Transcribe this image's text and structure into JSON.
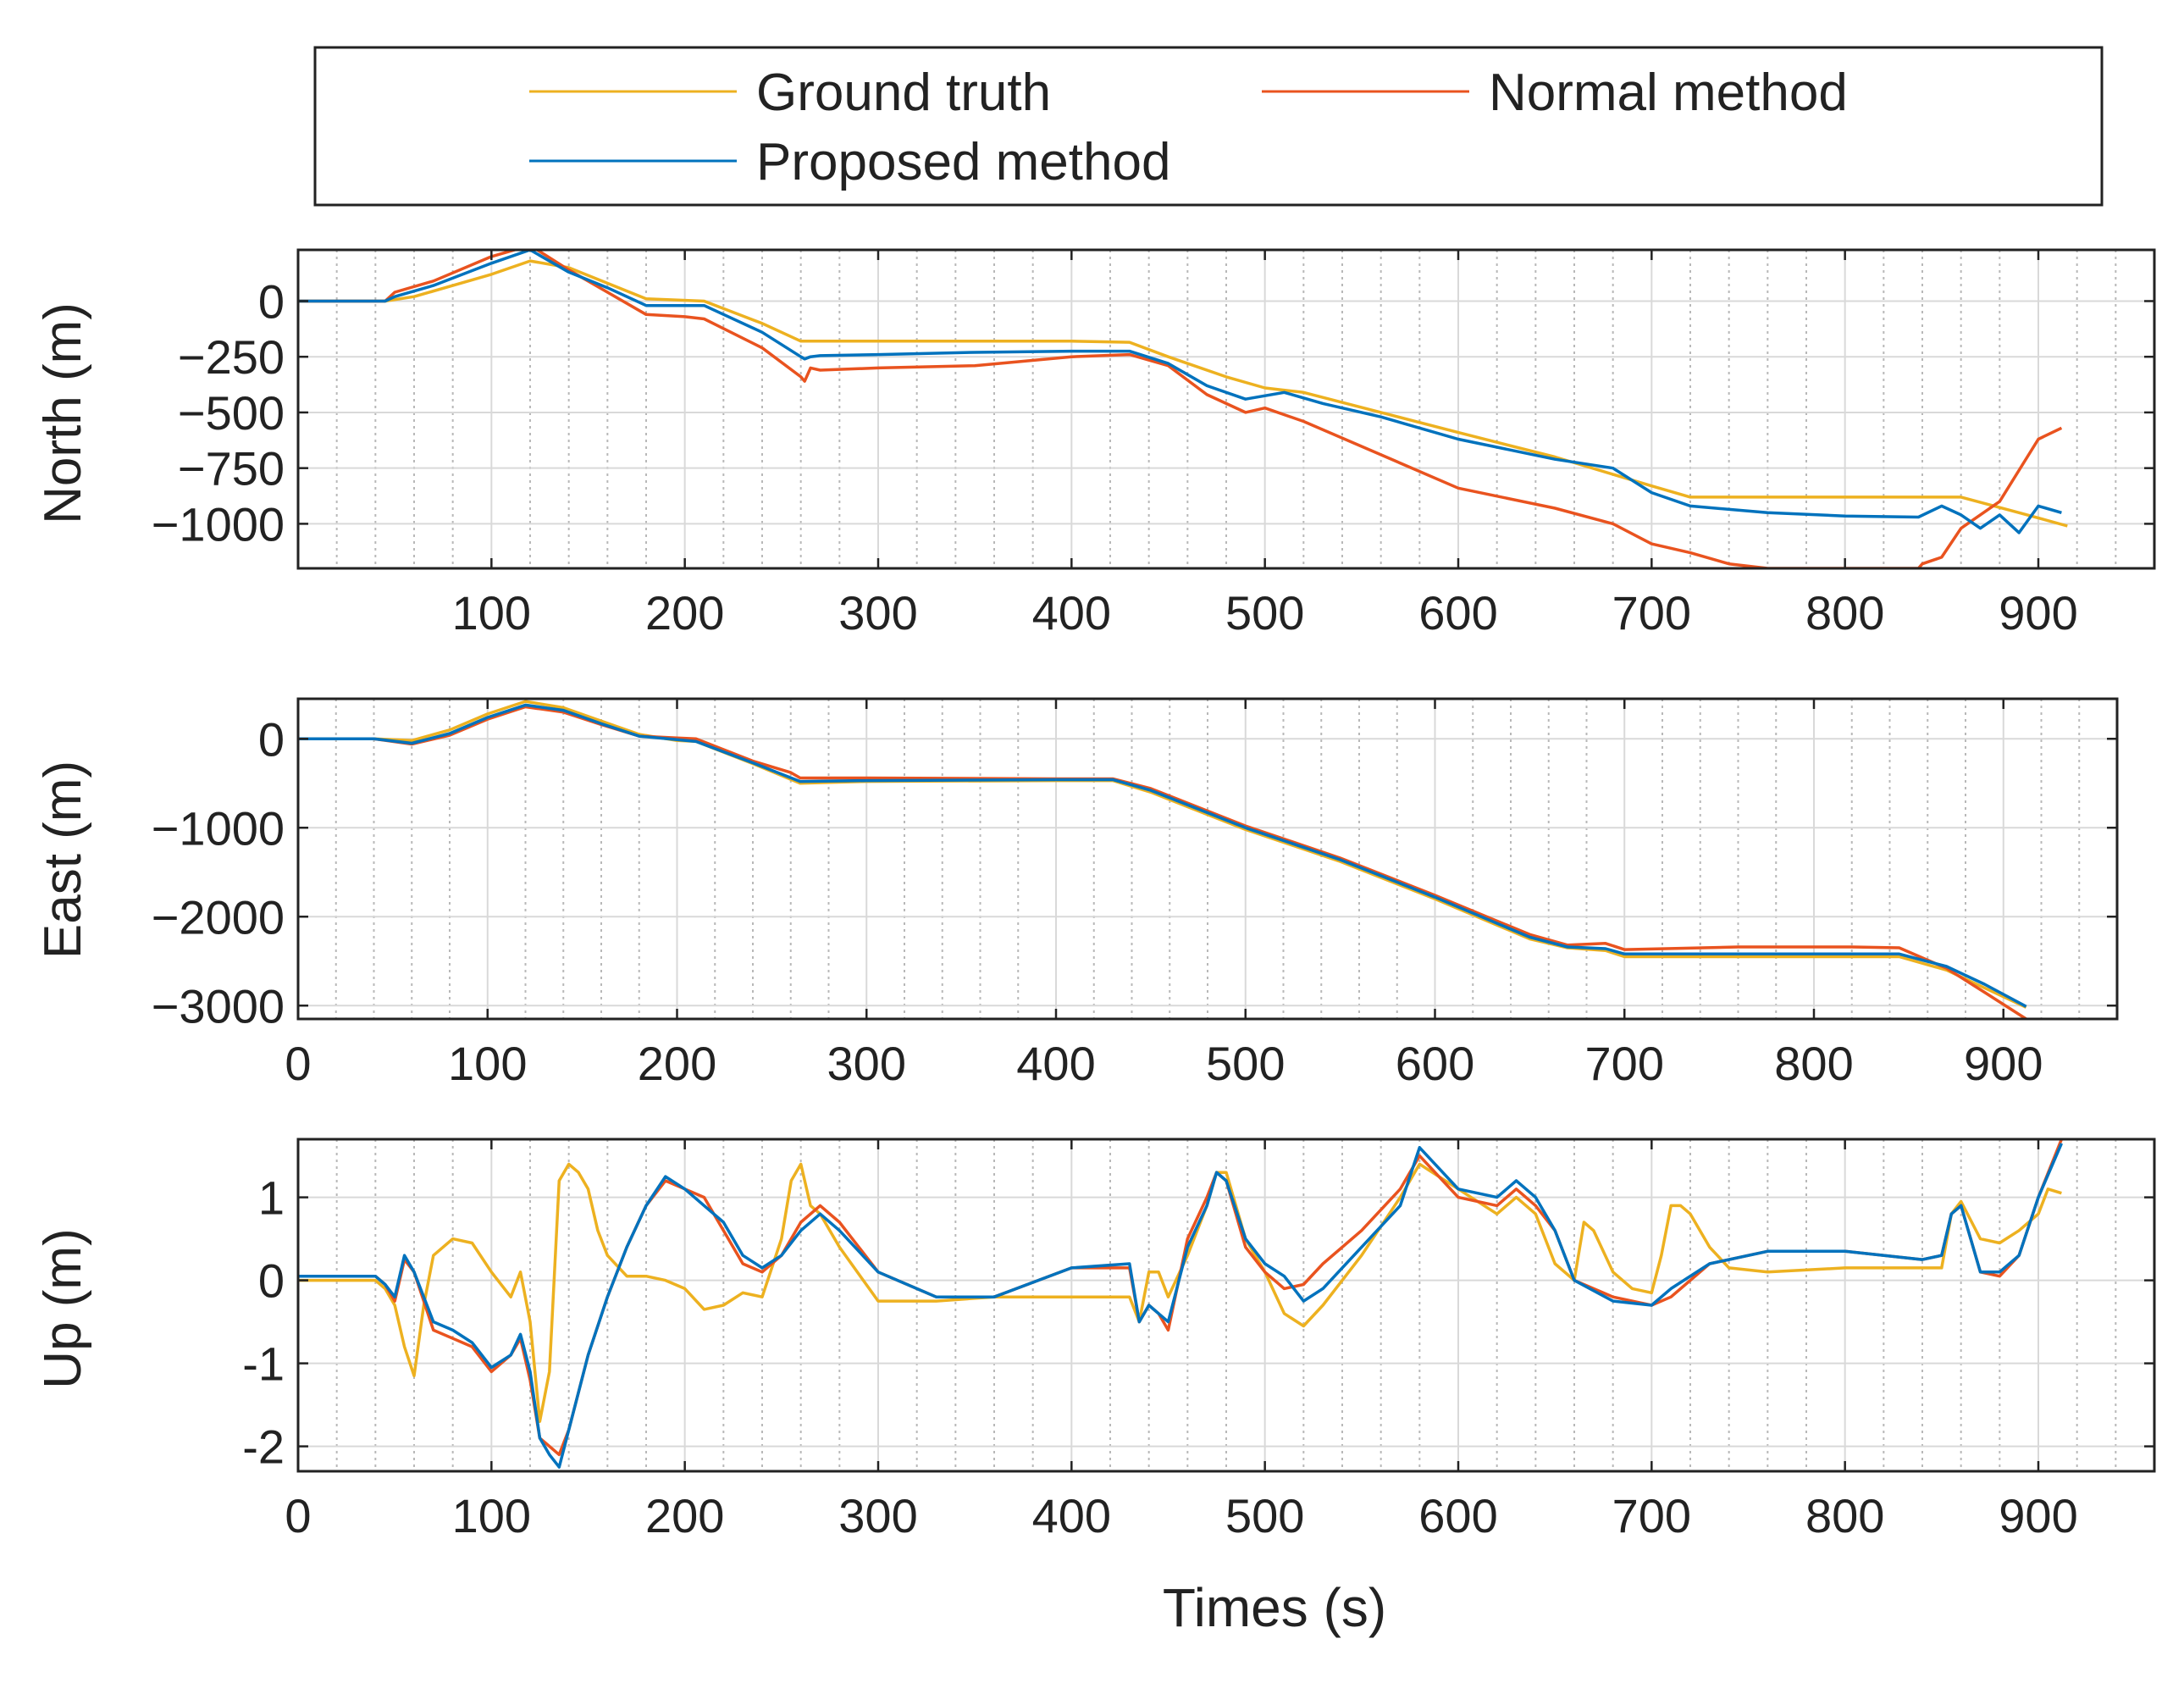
{
  "legend": {
    "entries": [
      {
        "label": "Ground truth",
        "color": "#EDB120"
      },
      {
        "label": "Normal method",
        "color": "#E9531F"
      },
      {
        "label": "Proposed method",
        "color": "#0072BD"
      }
    ]
  },
  "chart_data": [
    {
      "type": "line",
      "ylabel": "North (m)",
      "xlabel": "",
      "xlim": [
        0,
        960
      ],
      "ylim": [
        -1200,
        230
      ],
      "xticks": [
        100,
        200,
        300,
        400,
        500,
        600,
        700,
        800,
        900
      ],
      "yticks": [
        0,
        -250,
        -500,
        -750,
        -1000
      ],
      "ytick_labels": [
        "0",
        "−250",
        "−500",
        "−750",
        "−1000"
      ],
      "grid": true,
      "series": [
        {
          "name": "Ground truth",
          "color": "#EDB120",
          "x": [
            0,
            45,
            60,
            80,
            100,
            120,
            140,
            160,
            180,
            210,
            240,
            260,
            300,
            350,
            400,
            430,
            450,
            480,
            500,
            520,
            560,
            600,
            650,
            700,
            720,
            780,
            820,
            860,
            890,
            915
          ],
          "y": [
            0,
            0,
            20,
            70,
            120,
            180,
            150,
            80,
            10,
            0,
            -100,
            -180,
            -180,
            -180,
            -180,
            -185,
            -250,
            -340,
            -390,
            -410,
            -500,
            -590,
            -700,
            -830,
            -880,
            -880,
            -880,
            -880,
            -950,
            -1010
          ]
        },
        {
          "name": "Normal method",
          "color": "#E9531F",
          "x": [
            0,
            45,
            50,
            70,
            100,
            120,
            140,
            160,
            180,
            200,
            210,
            240,
            260,
            262,
            265,
            270,
            300,
            350,
            400,
            430,
            450,
            470,
            490,
            500,
            520,
            560,
            600,
            650,
            680,
            700,
            720,
            740,
            760,
            780,
            800,
            838,
            840,
            850,
            860,
            880,
            900,
            912
          ],
          "y": [
            0,
            0,
            40,
            90,
            200,
            250,
            140,
            40,
            -60,
            -70,
            -80,
            -210,
            -340,
            -360,
            -300,
            -310,
            -300,
            -290,
            -250,
            -240,
            -290,
            -420,
            -500,
            -480,
            -540,
            -690,
            -840,
            -930,
            -1000,
            -1090,
            -1130,
            -1180,
            -1200,
            -1200,
            -1200,
            -1200,
            -1180,
            -1150,
            -1020,
            -900,
            -620,
            -570
          ]
        },
        {
          "name": "Proposed method",
          "color": "#0072BD",
          "x": [
            0,
            45,
            50,
            70,
            100,
            120,
            140,
            160,
            180,
            200,
            210,
            240,
            260,
            262,
            265,
            270,
            300,
            350,
            400,
            430,
            450,
            470,
            490,
            510,
            530,
            560,
            600,
            650,
            680,
            700,
            720,
            760,
            800,
            838,
            850,
            860,
            870,
            880,
            890,
            900,
            912
          ],
          "y": [
            0,
            0,
            20,
            70,
            170,
            230,
            130,
            60,
            -20,
            -20,
            -20,
            -140,
            -250,
            -260,
            -250,
            -245,
            -240,
            -230,
            -225,
            -225,
            -280,
            -380,
            -440,
            -410,
            -460,
            -520,
            -620,
            -710,
            -750,
            -860,
            -920,
            -950,
            -965,
            -970,
            -920,
            -960,
            -1020,
            -960,
            -1040,
            -920,
            -950
          ]
        }
      ]
    },
    {
      "type": "line",
      "ylabel": "East (m)",
      "xlabel": "",
      "xlim": [
        0,
        960
      ],
      "ylim": [
        -3150,
        450
      ],
      "xticks": [
        0,
        100,
        200,
        300,
        400,
        500,
        600,
        700,
        800,
        900
      ],
      "yticks": [
        0,
        -1000,
        -2000,
        -3000
      ],
      "ytick_labels": [
        "0",
        "−1000",
        "−2000",
        "−3000"
      ],
      "grid": true,
      "series": [
        {
          "name": "Ground truth",
          "color": "#EDB120",
          "x": [
            0,
            40,
            60,
            80,
            100,
            120,
            140,
            160,
            180,
            200,
            210,
            240,
            265,
            300,
            400,
            430,
            450,
            500,
            550,
            600,
            650,
            670,
            690,
            700,
            760,
            820,
            845,
            870,
            890,
            912
          ],
          "y": [
            0,
            0,
            -20,
            100,
            280,
            420,
            350,
            200,
            50,
            -20,
            -30,
            -280,
            -500,
            -480,
            -470,
            -470,
            -600,
            -1020,
            -1380,
            -1800,
            -2250,
            -2350,
            -2380,
            -2450,
            -2450,
            -2450,
            -2450,
            -2600,
            -2800,
            -3020
          ]
        },
        {
          "name": "Normal method",
          "color": "#E9531F",
          "x": [
            0,
            40,
            60,
            80,
            100,
            120,
            140,
            160,
            180,
            200,
            210,
            240,
            260,
            265,
            300,
            400,
            430,
            450,
            500,
            550,
            600,
            650,
            670,
            690,
            700,
            760,
            820,
            845,
            870,
            890,
            912
          ],
          "y": [
            0,
            0,
            -60,
            40,
            220,
            360,
            300,
            160,
            30,
            10,
            0,
            -250,
            -380,
            -440,
            -440,
            -450,
            -450,
            -560,
            -980,
            -1340,
            -1760,
            -2200,
            -2320,
            -2300,
            -2370,
            -2340,
            -2340,
            -2350,
            -2580,
            -2850,
            -3150
          ]
        },
        {
          "name": "Proposed method",
          "color": "#0072BD",
          "x": [
            0,
            40,
            60,
            80,
            100,
            120,
            140,
            160,
            180,
            200,
            210,
            240,
            265,
            300,
            400,
            430,
            450,
            500,
            550,
            600,
            650,
            670,
            690,
            700,
            760,
            820,
            845,
            870,
            890,
            912
          ],
          "y": [
            0,
            0,
            -50,
            60,
            240,
            380,
            320,
            170,
            30,
            -10,
            -30,
            -270,
            -480,
            -470,
            -460,
            -460,
            -580,
            -1000,
            -1360,
            -1780,
            -2230,
            -2340,
            -2360,
            -2420,
            -2420,
            -2420,
            -2420,
            -2560,
            -2760,
            -3010
          ]
        }
      ]
    },
    {
      "type": "line",
      "ylabel": "Up (m)",
      "xlabel": "Times (s)",
      "xlim": [
        0,
        960
      ],
      "ylim": [
        -2.3,
        1.7
      ],
      "xticks": [
        0,
        100,
        200,
        300,
        400,
        500,
        600,
        700,
        800,
        900
      ],
      "yticks": [
        1,
        0,
        -1,
        -2
      ],
      "ytick_labels": [
        "1",
        "0",
        "-1",
        "-2"
      ],
      "grid": true,
      "series": [
        {
          "name": "Ground truth",
          "color": "#EDB120",
          "x": [
            0,
            40,
            45,
            50,
            55,
            60,
            65,
            70,
            80,
            90,
            100,
            110,
            115,
            120,
            125,
            130,
            135,
            140,
            145,
            150,
            155,
            160,
            170,
            180,
            190,
            200,
            210,
            220,
            230,
            240,
            250,
            255,
            260,
            265,
            270,
            280,
            300,
            330,
            360,
            400,
            430,
            435,
            440,
            445,
            450,
            460,
            470,
            475,
            480,
            490,
            500,
            510,
            520,
            530,
            550,
            570,
            580,
            600,
            620,
            630,
            640,
            650,
            660,
            665,
            670,
            680,
            690,
            700,
            705,
            710,
            715,
            720,
            730,
            740,
            760,
            800,
            840,
            850,
            855,
            860,
            870,
            880,
            890,
            900,
            905,
            912
          ],
          "y": [
            0,
            0,
            -0.1,
            -0.3,
            -0.8,
            -1.15,
            -0.3,
            0.3,
            0.5,
            0.45,
            0.1,
            -0.2,
            0.1,
            -0.5,
            -1.7,
            -1.1,
            1.2,
            1.4,
            1.3,
            1.1,
            0.6,
            0.3,
            0.05,
            0.05,
            0.0,
            -0.1,
            -0.35,
            -0.3,
            -0.15,
            -0.2,
            0.5,
            1.2,
            1.4,
            0.9,
            0.8,
            0.4,
            -0.25,
            -0.25,
            -0.2,
            -0.2,
            -0.2,
            -0.5,
            0.1,
            0.1,
            -0.2,
            0.3,
            0.9,
            1.3,
            1.3,
            0.5,
            0.1,
            -0.4,
            -0.55,
            -0.3,
            0.3,
            1.0,
            1.4,
            1.1,
            0.8,
            1.0,
            0.8,
            0.2,
            0.0,
            0.7,
            0.6,
            0.1,
            -0.1,
            -0.15,
            0.3,
            0.9,
            0.9,
            0.8,
            0.4,
            0.15,
            0.1,
            0.15,
            0.15,
            0.15,
            0.8,
            0.95,
            0.5,
            0.45,
            0.6,
            0.8,
            1.1,
            1.05
          ]
        },
        {
          "name": "Normal method",
          "color": "#E9531F",
          "x": [
            0,
            40,
            45,
            50,
            55,
            60,
            70,
            80,
            90,
            100,
            110,
            115,
            120,
            125,
            130,
            135,
            140,
            150,
            160,
            170,
            180,
            190,
            200,
            210,
            220,
            230,
            240,
            250,
            260,
            270,
            280,
            300,
            330,
            360,
            400,
            430,
            435,
            440,
            445,
            450,
            460,
            470,
            475,
            480,
            490,
            500,
            510,
            520,
            530,
            550,
            570,
            580,
            600,
            620,
            630,
            640,
            650,
            660,
            680,
            700,
            710,
            730,
            760,
            800,
            840,
            850,
            855,
            860,
            870,
            880,
            890,
            900,
            912
          ],
          "y": [
            0.05,
            0.05,
            -0.05,
            -0.25,
            0.25,
            0.1,
            -0.6,
            -0.7,
            -0.8,
            -1.1,
            -0.9,
            -0.7,
            -1.2,
            -1.9,
            -2.0,
            -2.1,
            -1.8,
            -0.9,
            -0.2,
            0.4,
            0.9,
            1.2,
            1.1,
            1.0,
            0.6,
            0.2,
            0.1,
            0.3,
            0.7,
            0.9,
            0.7,
            0.1,
            -0.2,
            -0.2,
            0.15,
            0.15,
            -0.5,
            -0.3,
            -0.4,
            -0.6,
            0.5,
            1.0,
            1.3,
            1.2,
            0.4,
            0.1,
            -0.1,
            -0.05,
            0.2,
            0.6,
            1.1,
            1.5,
            1.0,
            0.9,
            1.1,
            0.9,
            0.6,
            0.0,
            -0.2,
            -0.3,
            -0.2,
            0.2,
            0.35,
            0.35,
            0.25,
            0.3,
            0.8,
            0.9,
            0.1,
            0.05,
            0.3,
            1.0,
            1.7
          ]
        },
        {
          "name": "Proposed method",
          "color": "#0072BD",
          "x": [
            0,
            40,
            45,
            50,
            55,
            60,
            70,
            80,
            90,
            100,
            110,
            115,
            120,
            125,
            130,
            135,
            140,
            150,
            160,
            170,
            180,
            190,
            200,
            210,
            220,
            230,
            240,
            250,
            260,
            270,
            280,
            300,
            330,
            360,
            400,
            430,
            435,
            440,
            445,
            450,
            460,
            470,
            475,
            480,
            490,
            500,
            510,
            520,
            530,
            550,
            570,
            580,
            600,
            620,
            630,
            640,
            650,
            660,
            680,
            700,
            710,
            730,
            760,
            800,
            840,
            850,
            855,
            860,
            870,
            880,
            890,
            900,
            912
          ],
          "y": [
            0.05,
            0.05,
            -0.05,
            -0.2,
            0.3,
            0.1,
            -0.5,
            -0.6,
            -0.75,
            -1.05,
            -0.9,
            -0.65,
            -1.1,
            -1.9,
            -2.1,
            -2.25,
            -1.8,
            -0.9,
            -0.2,
            0.4,
            0.9,
            1.25,
            1.1,
            0.9,
            0.7,
            0.3,
            0.15,
            0.3,
            0.6,
            0.8,
            0.6,
            0.1,
            -0.2,
            -0.2,
            0.15,
            0.2,
            -0.5,
            -0.3,
            -0.4,
            -0.5,
            0.4,
            0.9,
            1.3,
            1.2,
            0.5,
            0.2,
            0.05,
            -0.25,
            -0.1,
            0.4,
            0.9,
            1.6,
            1.1,
            1.0,
            1.2,
            1.0,
            0.6,
            0.0,
            -0.25,
            -0.3,
            -0.1,
            0.2,
            0.35,
            0.35,
            0.25,
            0.3,
            0.8,
            0.9,
            0.1,
            0.1,
            0.3,
            1.0,
            1.65
          ]
        }
      ]
    }
  ]
}
